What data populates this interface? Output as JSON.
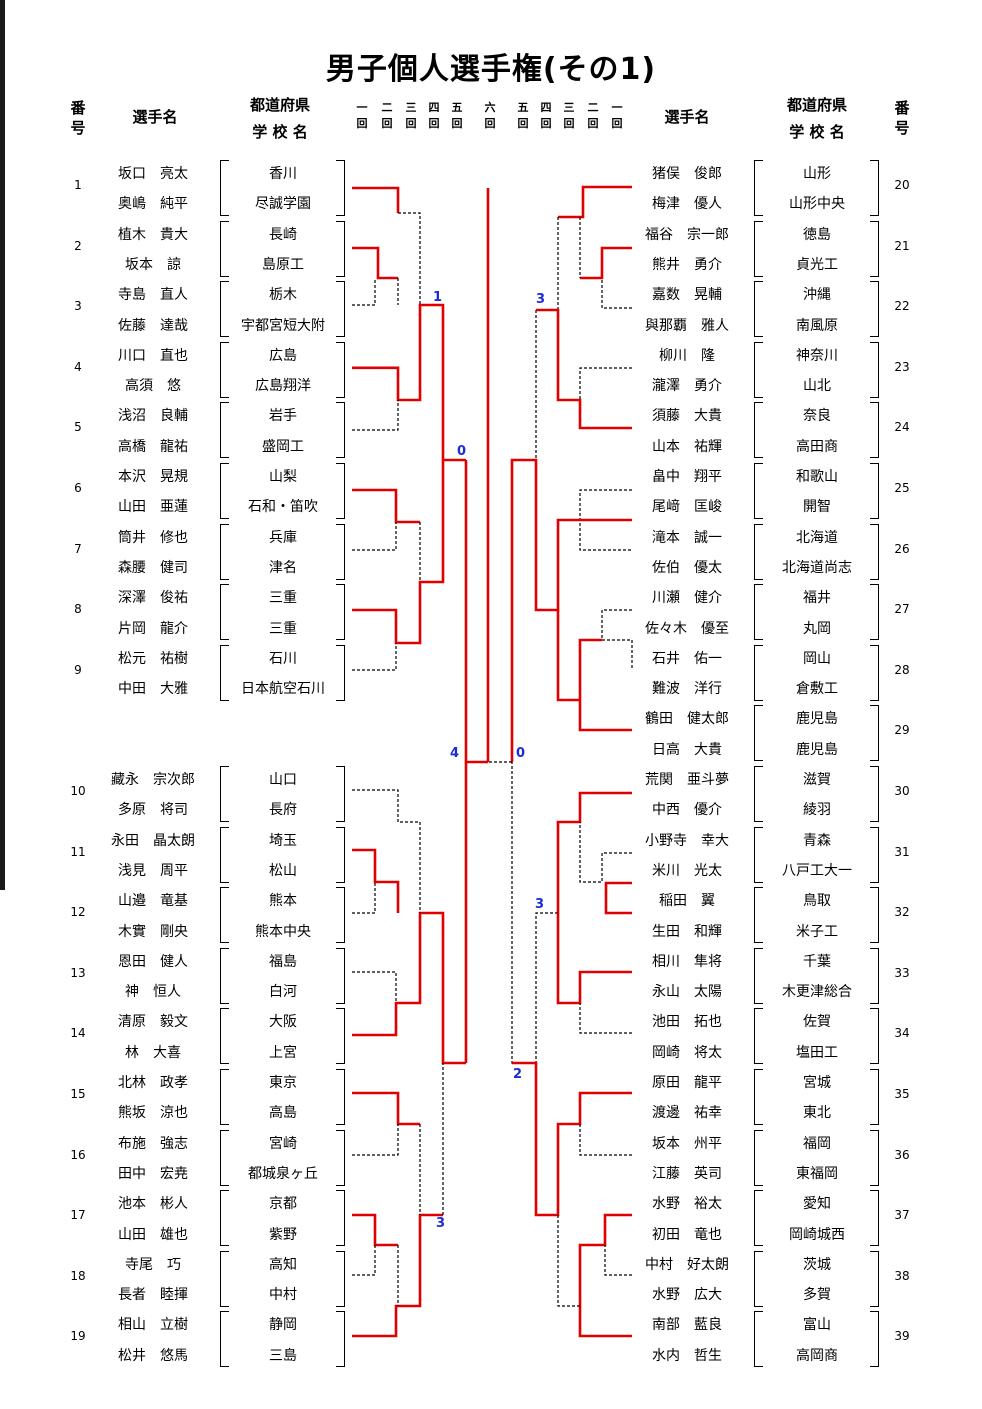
{
  "title": "男子個人選手権(その1)",
  "headers": {
    "number": "番\n号",
    "player": "選手名",
    "school_line1": "都道府県",
    "school_line2": "学 校 名"
  },
  "round_labels_left": [
    "一\n回",
    "二\n回",
    "三\n回",
    "四\n回",
    "五\n回"
  ],
  "round_label_final": "六\n回",
  "round_labels_right": [
    "五\n回",
    "四\n回",
    "三\n回",
    "二\n回",
    "一\n回"
  ],
  "left": [
    {
      "num": "1",
      "players": [
        "坂口　亮太",
        "奥嶋　純平"
      ],
      "schools": [
        "香川",
        "尽誠学園"
      ]
    },
    {
      "num": "2",
      "players": [
        "植木　貴大",
        "坂本　諒"
      ],
      "schools": [
        "長崎",
        "島原工"
      ]
    },
    {
      "num": "3",
      "players": [
        "寺島　直人",
        "佐藤　達哉"
      ],
      "schools": [
        "栃木",
        "宇都宮短大附"
      ]
    },
    {
      "num": "4",
      "players": [
        "川口　直也",
        "高須　悠"
      ],
      "schools": [
        "広島",
        "広島翔洋"
      ]
    },
    {
      "num": "5",
      "players": [
        "浅沼　良輔",
        "高橋　龍祐"
      ],
      "schools": [
        "岩手",
        "盛岡工"
      ]
    },
    {
      "num": "6",
      "players": [
        "本沢　晃規",
        "山田　亜蓮"
      ],
      "schools": [
        "山梨",
        "石和・笛吹"
      ]
    },
    {
      "num": "7",
      "players": [
        "筒井　修也",
        "森腰　健司"
      ],
      "schools": [
        "兵庫",
        "津名"
      ]
    },
    {
      "num": "8",
      "players": [
        "深澤　俊祐",
        "片岡　龍介"
      ],
      "schools": [
        "三重",
        "三重"
      ]
    },
    {
      "num": "9",
      "players": [
        "松元　祐樹",
        "中田　大雅"
      ],
      "schools": [
        "石川",
        "日本航空石川"
      ]
    },
    {
      "num": "10",
      "players": [
        "藏永　宗次郎",
        "多原　将司"
      ],
      "schools": [
        "山口",
        "長府"
      ]
    },
    {
      "num": "11",
      "players": [
        "永田　晶太朗",
        "浅見　周平"
      ],
      "schools": [
        "埼玉",
        "松山"
      ]
    },
    {
      "num": "12",
      "players": [
        "山邉　竜基",
        "木實　剛央"
      ],
      "schools": [
        "熊本",
        "熊本中央"
      ]
    },
    {
      "num": "13",
      "players": [
        "恩田　健人",
        "神　恒人"
      ],
      "schools": [
        "福島",
        "白河"
      ]
    },
    {
      "num": "14",
      "players": [
        "清原　毅文",
        "林　大喜"
      ],
      "schools": [
        "大阪",
        "上宮"
      ]
    },
    {
      "num": "15",
      "players": [
        "北林　政孝",
        "熊坂　涼也"
      ],
      "schools": [
        "東京",
        "高島"
      ]
    },
    {
      "num": "16",
      "players": [
        "布施　強志",
        "田中　宏尭"
      ],
      "schools": [
        "宮崎",
        "都城泉ヶ丘"
      ]
    },
    {
      "num": "17",
      "players": [
        "池本　彬人",
        "山田　雄也"
      ],
      "schools": [
        "京都",
        "紫野"
      ]
    },
    {
      "num": "18",
      "players": [
        "寺尾　巧",
        "長者　睦揮"
      ],
      "schools": [
        "高知",
        "中村"
      ]
    },
    {
      "num": "19",
      "players": [
        "相山　立樹",
        "松井　悠馬"
      ],
      "schools": [
        "静岡",
        "三島"
      ]
    }
  ],
  "right": [
    {
      "num": "20",
      "players": [
        "猪俣　俊郎",
        "梅津　優人"
      ],
      "schools": [
        "山形",
        "山形中央"
      ]
    },
    {
      "num": "21",
      "players": [
        "福谷　宗一郎",
        "熊井　勇介"
      ],
      "schools": [
        "徳島",
        "貞光工"
      ]
    },
    {
      "num": "22",
      "players": [
        "嘉数　晃輔",
        "與那覇　雅人"
      ],
      "schools": [
        "沖縄",
        "南風原"
      ]
    },
    {
      "num": "23",
      "players": [
        "柳川　隆",
        "瀧澤　勇介"
      ],
      "schools": [
        "神奈川",
        "山北"
      ]
    },
    {
      "num": "24",
      "players": [
        "須藤　大貴",
        "山本　祐輝"
      ],
      "schools": [
        "奈良",
        "高田商"
      ]
    },
    {
      "num": "25",
      "players": [
        "畠中　翔平",
        "尾﨑　匡峻"
      ],
      "schools": [
        "和歌山",
        "開智"
      ]
    },
    {
      "num": "26",
      "players": [
        "滝本　誠一",
        "佐伯　優太"
      ],
      "schools": [
        "北海道",
        "北海道尚志"
      ]
    },
    {
      "num": "27",
      "players": [
        "川瀬　健介",
        "佐々木　優至"
      ],
      "schools": [
        "福井",
        "丸岡"
      ]
    },
    {
      "num": "28",
      "players": [
        "石井　佑一",
        "難波　洋行"
      ],
      "schools": [
        "岡山",
        "倉敷工"
      ]
    },
    {
      "num": "29",
      "players": [
        "鶴田　健太郎",
        "日高　大貴"
      ],
      "schools": [
        "鹿児島",
        "鹿児島"
      ]
    },
    {
      "num": "30",
      "players": [
        "荒関　亜斗夢",
        "中西　優介"
      ],
      "schools": [
        "滋賀",
        "綾羽"
      ]
    },
    {
      "num": "31",
      "players": [
        "小野寺　幸大",
        "米川　光太"
      ],
      "schools": [
        "青森",
        "八戸工大一"
      ]
    },
    {
      "num": "32",
      "players": [
        "稲田　翼",
        "生田　和輝"
      ],
      "schools": [
        "鳥取",
        "米子工"
      ]
    },
    {
      "num": "33",
      "players": [
        "相川　隼将",
        "永山　太陽"
      ],
      "schools": [
        "千葉",
        "木更津総合"
      ]
    },
    {
      "num": "34",
      "players": [
        "池田　拓也",
        "岡崎　将太"
      ],
      "schools": [
        "佐賀",
        "塩田工"
      ]
    },
    {
      "num": "35",
      "players": [
        "原田　龍平",
        "渡邊　祐幸"
      ],
      "schools": [
        "宮城",
        "東北"
      ]
    },
    {
      "num": "36",
      "players": [
        "坂本　州平",
        "江藤　英司"
      ],
      "schools": [
        "福岡",
        "東福岡"
      ]
    },
    {
      "num": "37",
      "players": [
        "水野　裕太",
        "初田　竜也"
      ],
      "schools": [
        "愛知",
        "岡崎城西"
      ]
    },
    {
      "num": "38",
      "players": [
        "中村　好太朗",
        "水野　広大"
      ],
      "schools": [
        "茨城",
        "多賀"
      ]
    },
    {
      "num": "39",
      "players": [
        "南部　藍良",
        "水内　哲生"
      ],
      "schools": [
        "富山",
        "高岡商"
      ]
    }
  ],
  "scores": [
    "1",
    "3",
    "0",
    "4",
    "0",
    "3",
    "2",
    "3"
  ],
  "colors": {
    "winner_line": "#e00000",
    "score": "#1a2bd8",
    "draw_line": "#000000"
  }
}
